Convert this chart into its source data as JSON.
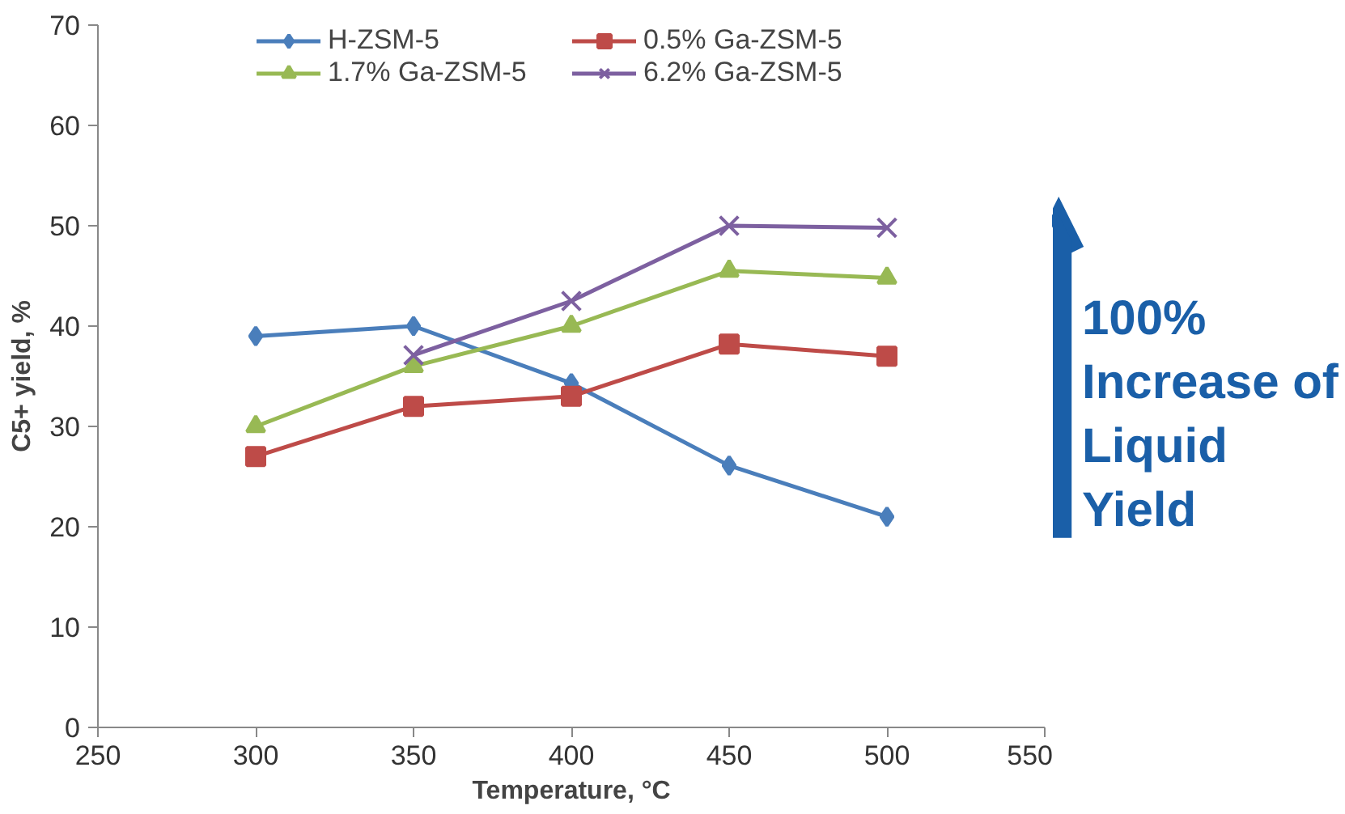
{
  "chart_data": {
    "type": "line",
    "xlabel": "Temperature, °C",
    "ylabel": "C5+ yield, %",
    "x": [
      300,
      350,
      400,
      450,
      500
    ],
    "series": [
      {
        "name": "H-ZSM-5",
        "color": "#4a7ebb",
        "marker": "diamond",
        "values": [
          39,
          40,
          34.3,
          26.1,
          21
        ]
      },
      {
        "name": "0.5% Ga-ZSM-5",
        "color": "#be4b48",
        "marker": "square",
        "values": [
          27,
          32,
          33,
          38.2,
          37
        ]
      },
      {
        "name": "1.7% Ga-ZSM-5",
        "color": "#98b954",
        "marker": "triangle",
        "values": [
          30,
          36,
          40,
          45.5,
          44.8
        ]
      },
      {
        "name": "6.2% Ga-ZSM-5",
        "color": "#7d60a0",
        "marker": "cross",
        "values": [
          null,
          37.1,
          42.5,
          50,
          49.8
        ]
      }
    ],
    "xlim": [
      250,
      550
    ],
    "ylim": [
      0,
      70
    ],
    "xticks": [
      250,
      300,
      350,
      400,
      450,
      500,
      550
    ],
    "yticks": [
      0,
      10,
      20,
      30,
      40,
      50,
      60,
      70
    ],
    "grid": false,
    "legend": "top",
    "line_style": "solid",
    "annotations": [
      "100% Increase of Liquid Yield"
    ]
  }
}
